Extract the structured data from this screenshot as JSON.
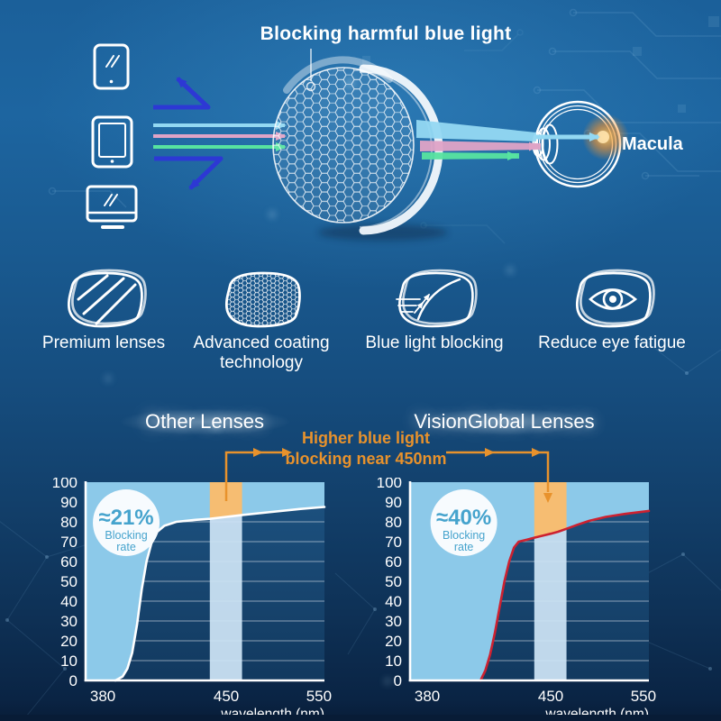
{
  "page": {
    "title": "Blocking harmful blue light",
    "macula_label": "Macula"
  },
  "features": [
    {
      "label": "Premium lenses",
      "icon": "lens-stripes-icon"
    },
    {
      "label": "Advanced coating technology",
      "icon": "lens-honeycomb-icon"
    },
    {
      "label": "Blue light blocking",
      "icon": "lens-deflect-icon"
    },
    {
      "label": "Reduce eye fatigue",
      "icon": "lens-eye-icon"
    }
  ],
  "annotation": {
    "line1": "Higher blue light",
    "line2": "blocking near 450nm"
  },
  "colors": {
    "accent_orange": "#e8922c",
    "area_fill": "#8cc9e9",
    "band_fill": "#cde4f5",
    "band_highlight": "#f6bd72",
    "badge_text": "#45a3cd",
    "ray_blue_reflected": "#2f35d8",
    "ray_cyan": "#93d8f2",
    "ray_pink": "#dfa3c6",
    "ray_green": "#57e3a0",
    "macula_glow": "#f5942e",
    "background_top": "#1d65a0",
    "background_bottom": "#0a2443"
  },
  "chart_data": [
    {
      "type": "area",
      "title": "Other Lenses",
      "badge": {
        "value": "≈21%",
        "label_lines": [
          "Blocking",
          "rate"
        ],
        "fx": 0.17
      },
      "xlabel": "wavelength (nm)",
      "ylabel": "",
      "ylim": [
        0,
        100
      ],
      "y_ticks": [
        0,
        10,
        20,
        30,
        40,
        50,
        60,
        70,
        80,
        90,
        100
      ],
      "x_ticks": [
        {
          "label": "380",
          "fx": 0.072
        },
        {
          "label": "450",
          "fx": 0.589
        },
        {
          "label": "550",
          "fx": 0.977
        }
      ],
      "band": {
        "fx1": 0.52,
        "fx2": 0.655,
        "meaning": "450nm blue-light band"
      },
      "grid": true,
      "legend": false,
      "curve_color": "#ffffff",
      "curve": [
        [
          0.125,
          0
        ],
        [
          0.155,
          2
        ],
        [
          0.175,
          6
        ],
        [
          0.195,
          14
        ],
        [
          0.215,
          28
        ],
        [
          0.235,
          46
        ],
        [
          0.255,
          60
        ],
        [
          0.275,
          69
        ],
        [
          0.3,
          75
        ],
        [
          0.33,
          78
        ],
        [
          0.38,
          80
        ],
        [
          0.46,
          81
        ],
        [
          0.52,
          81.5
        ],
        [
          0.589,
          82.5
        ],
        [
          0.66,
          83.5
        ],
        [
          0.78,
          85
        ],
        [
          0.9,
          86.5
        ],
        [
          1.0,
          87.5
        ]
      ]
    },
    {
      "type": "area",
      "title": "VisionGlobal Lenses",
      "badge": {
        "value": "≈40%",
        "label_lines": [
          "Blocking",
          "rate"
        ],
        "fx": 0.225
      },
      "xlabel": "wavelength (nm)",
      "ylabel": "",
      "ylim": [
        0,
        100
      ],
      "y_ticks": [
        0,
        10,
        20,
        30,
        40,
        50,
        60,
        70,
        80,
        90,
        100
      ],
      "x_ticks": [
        {
          "label": "380",
          "fx": 0.072
        },
        {
          "label": "450",
          "fx": 0.589
        },
        {
          "label": "550",
          "fx": 0.977
        }
      ],
      "band": {
        "fx1": 0.52,
        "fx2": 0.655,
        "meaning": "450nm blue-light band"
      },
      "grid": true,
      "legend": false,
      "curve_color": "#cd2130",
      "curve": [
        [
          0.295,
          0
        ],
        [
          0.315,
          5
        ],
        [
          0.335,
          13
        ],
        [
          0.355,
          24
        ],
        [
          0.375,
          37
        ],
        [
          0.395,
          50
        ],
        [
          0.415,
          60
        ],
        [
          0.435,
          67
        ],
        [
          0.455,
          70
        ],
        [
          0.49,
          71
        ],
        [
          0.52,
          72
        ],
        [
          0.555,
          73
        ],
        [
          0.589,
          74
        ],
        [
          0.62,
          75
        ],
        [
          0.655,
          76.5
        ],
        [
          0.7,
          78.5
        ],
        [
          0.75,
          80.5
        ],
        [
          0.82,
          82.5
        ],
        [
          0.9,
          84
        ],
        [
          1.0,
          85.5
        ]
      ]
    }
  ]
}
